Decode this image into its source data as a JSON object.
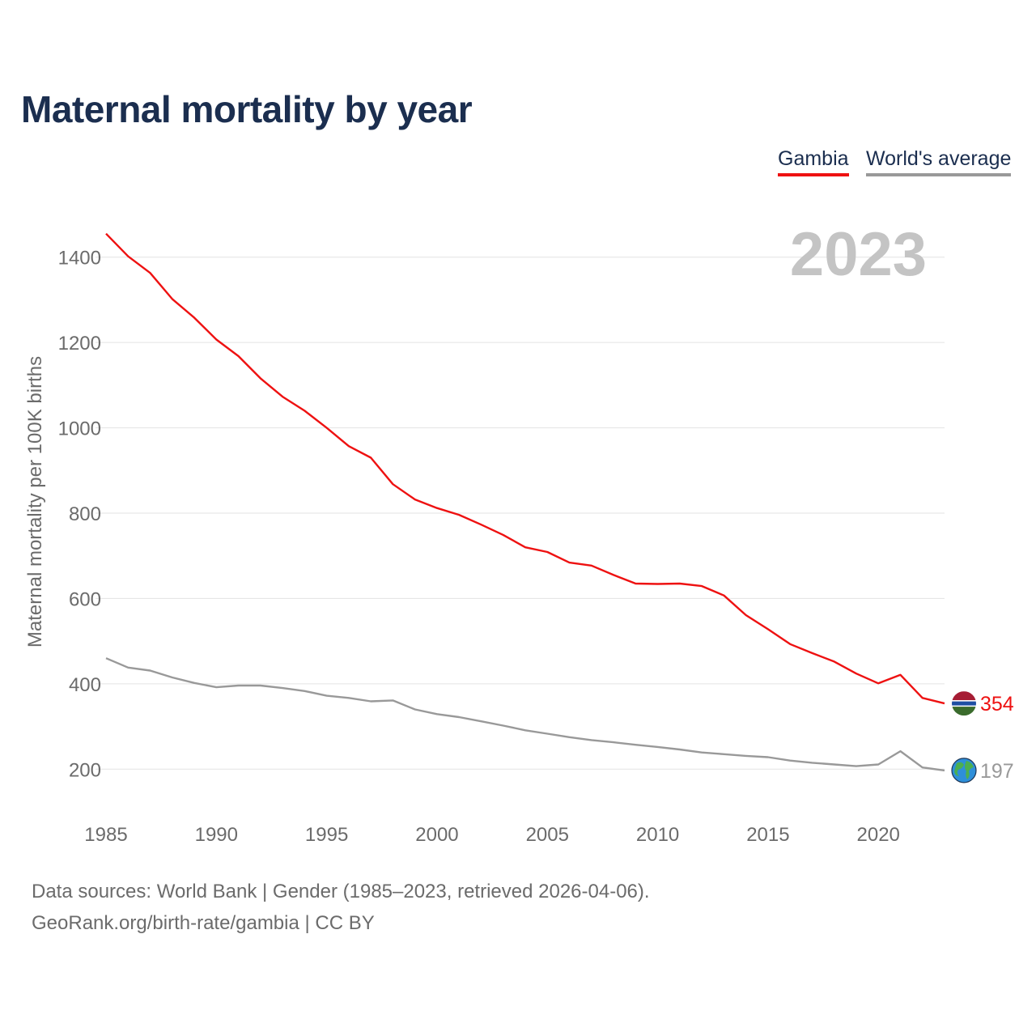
{
  "title": "Maternal mortality by year",
  "legend": [
    {
      "label": "Gambia",
      "color": "#ee1111"
    },
    {
      "label": "World's average",
      "color": "#999999"
    }
  ],
  "year_label": "2023",
  "footer": {
    "source": "Data sources: World Bank | Gender (1985–2023, retrieved 2026-04-06).",
    "credit": "GeoRank.org/birth-rate/gambia | CC BY"
  },
  "chart_data": {
    "type": "line",
    "title": "Maternal mortality by year",
    "xlabel": "",
    "ylabel": "Maternal mortality per 100K births",
    "xlim": [
      1985,
      2023
    ],
    "ylim": [
      100,
      1500
    ],
    "xticks": [
      1985,
      1990,
      1995,
      2000,
      2005,
      2010,
      2015,
      2020
    ],
    "yticks": [
      200,
      400,
      600,
      800,
      1000,
      1200,
      1400
    ],
    "x": [
      1985,
      1986,
      1987,
      1988,
      1989,
      1990,
      1991,
      1992,
      1993,
      1994,
      1995,
      1996,
      1997,
      1998,
      1999,
      2000,
      2001,
      2002,
      2003,
      2004,
      2005,
      2006,
      2007,
      2008,
      2009,
      2010,
      2011,
      2012,
      2013,
      2014,
      2015,
      2016,
      2017,
      2018,
      2019,
      2020,
      2021,
      2022,
      2023
    ],
    "series": [
      {
        "name": "Gambia",
        "color": "#ee1111",
        "end_label": "354",
        "values": [
          1455,
          1402,
          1363,
          1302,
          1258,
          1207,
          1168,
          1116,
          1073,
          1040,
          1000,
          957,
          930,
          868,
          832,
          812,
          796,
          773,
          749,
          720,
          709,
          684,
          677,
          655,
          635,
          634,
          635,
          629,
          607,
          561,
          528,
          493,
          472,
          452,
          424,
          401,
          421,
          367,
          354
        ]
      },
      {
        "name": "World's average",
        "color": "#999999",
        "end_label": "197",
        "values": [
          460,
          438,
          431,
          415,
          402,
          392,
          396,
          396,
          390,
          383,
          372,
          367,
          359,
          361,
          340,
          329,
          322,
          312,
          302,
          291,
          283,
          275,
          268,
          263,
          257,
          252,
          246,
          239,
          235,
          231,
          228,
          220,
          215,
          211,
          207,
          211,
          242,
          204,
          197
        ]
      }
    ]
  }
}
